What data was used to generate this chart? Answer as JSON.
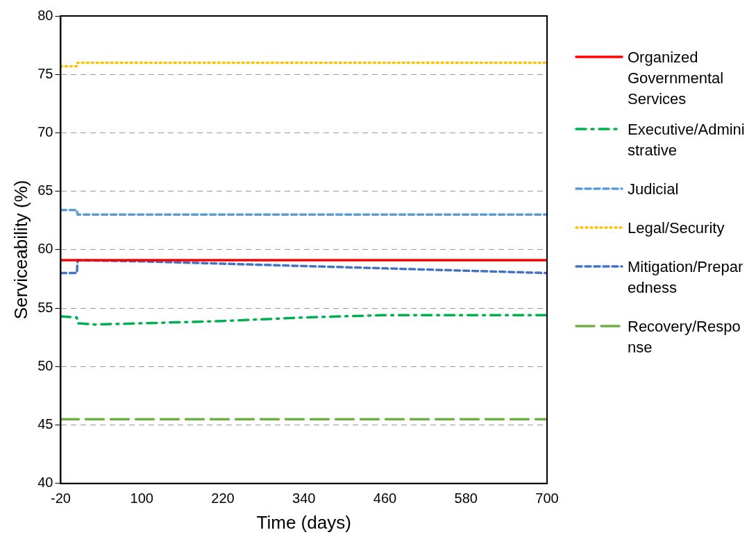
{
  "chart_data": {
    "type": "line",
    "xlabel": "Time (days)",
    "ylabel": "Serviceability (%)",
    "x": [
      -20,
      4,
      5,
      30,
      100,
      220,
      340,
      460,
      580,
      700
    ],
    "series": [
      {
        "name": "Organized Governmental Services",
        "color": "#ff0000",
        "line_style": "solid",
        "values": [
          59.1,
          59.1,
          59.1,
          59.1,
          59.1,
          59.1,
          59.1,
          59.1,
          59.1,
          59.1
        ]
      },
      {
        "name": "Executive/Administrative",
        "color": "#00b050",
        "line_style": "dashdot",
        "values": [
          54.3,
          54.2,
          53.7,
          53.6,
          53.7,
          53.9,
          54.2,
          54.4,
          54.4,
          54.4
        ]
      },
      {
        "name": "Judicial",
        "color": "#5b9bd5",
        "line_style": "dashed",
        "values": [
          63.4,
          63.4,
          63.0,
          63.0,
          63.0,
          63.0,
          63.0,
          63.0,
          63.0,
          63.0
        ]
      },
      {
        "name": "Legal/Security",
        "color": "#ffc000",
        "line_style": "dotted",
        "values": [
          75.7,
          75.7,
          76.0,
          76.0,
          76.0,
          76.0,
          76.0,
          76.0,
          76.0,
          76.0
        ]
      },
      {
        "name": "Mitigation/Preparedness",
        "color": "#4472c4",
        "line_style": "dashed",
        "x": [
          -20,
          4,
          5,
          100,
          220,
          340,
          460,
          580,
          700
        ],
        "values": [
          58.0,
          58.0,
          59.1,
          59.0,
          58.8,
          58.6,
          58.4,
          58.2,
          58.0
        ]
      },
      {
        "name": "Recovery/Response",
        "color": "#70ad47",
        "line_style": "longdash",
        "values": [
          45.5,
          45.5,
          45.5,
          45.5,
          45.5,
          45.5,
          45.5,
          45.5,
          45.5,
          45.5
        ]
      }
    ],
    "xlim": [
      -20,
      700
    ],
    "xticks": [
      -20,
      100,
      220,
      340,
      460,
      580,
      700
    ],
    "ylim": [
      40,
      80
    ],
    "yticks": [
      40,
      45,
      50,
      55,
      60,
      65,
      70,
      75,
      80
    ],
    "grid": "y",
    "legend": "right",
    "marker": "none"
  }
}
